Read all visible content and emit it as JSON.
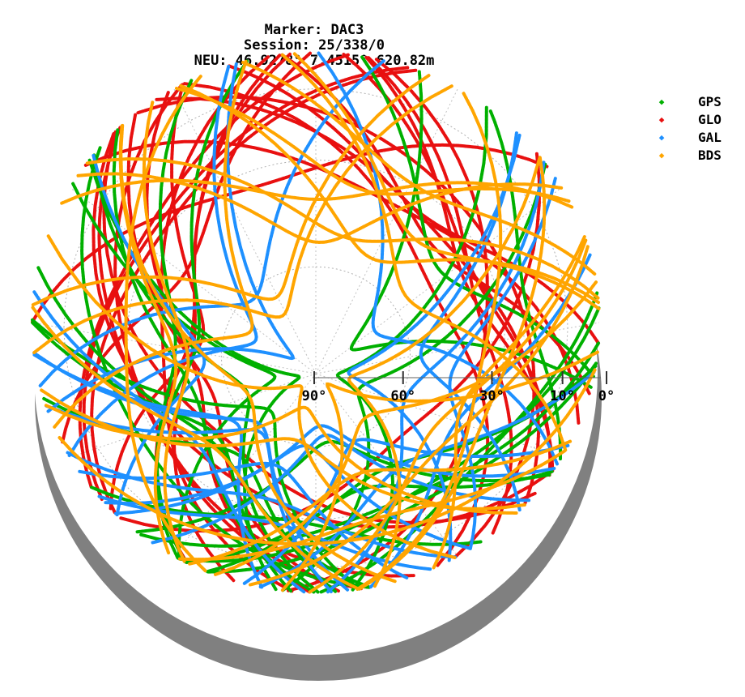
{
  "title_lines": [
    "Marker: DAC3",
    "Session: 25/338/0",
    "NEU: 46.9278° 7.4515° 620.82m"
  ],
  "chart_data": {
    "type": "scatter",
    "subtype": "skyplot",
    "title": "Marker: DAC3 / Session: 25/338/0 / NEU: 46.9278° 7.4515° 620.82m",
    "elevation_ticks": [
      {
        "value": 90,
        "label": "90°"
      },
      {
        "value": 60,
        "label": "60°"
      },
      {
        "value": 30,
        "label": "30°"
      },
      {
        "value": 10,
        "label": "10°"
      },
      {
        "value": 0,
        "label": "0°"
      }
    ],
    "elevation_range": [
      0,
      90
    ],
    "azimuth_range": [
      0,
      360
    ],
    "grid": true,
    "legend_position": "top-right",
    "series": [
      {
        "name": "GPS",
        "color": "#00b000"
      },
      {
        "name": "GLO",
        "color": "#e81010"
      },
      {
        "name": "GAL",
        "color": "#1e90ff"
      },
      {
        "name": "BDS",
        "color": "#ffa500"
      }
    ]
  }
}
